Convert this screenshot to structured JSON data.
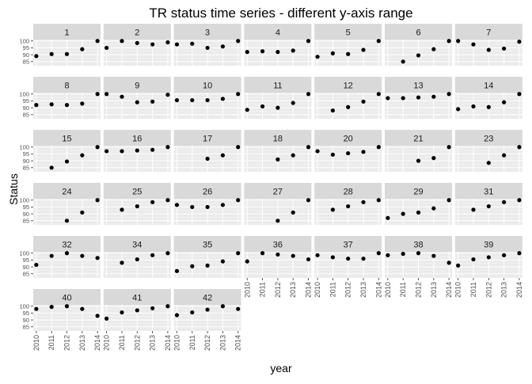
{
  "chart_data": {
    "type": "scatter",
    "title": "TR status time series - different y-axis range",
    "xlabel": "year",
    "ylabel": "Status",
    "x_ticks": [
      2010,
      2011,
      2012,
      2013,
      2014
    ],
    "y_ticks": [
      85,
      90,
      95,
      100
    ],
    "ylim": [
      82,
      101
    ],
    "grid": true,
    "point_color": "#000000",
    "panel_background": "#ebebeb",
    "strip_background": "#d9d9d9",
    "panels": [
      {
        "label": "1",
        "points": [
          [
            2010,
            89
          ],
          [
            2011,
            90.5
          ],
          [
            2012,
            90.5
          ],
          [
            2013,
            94
          ],
          [
            2014,
            100
          ]
        ]
      },
      {
        "label": "2",
        "points": [
          [
            2010,
            95
          ],
          [
            2011,
            100
          ],
          [
            2012,
            98.5
          ],
          [
            2013,
            97.5
          ],
          [
            2014,
            99
          ]
        ]
      },
      {
        "label": "3",
        "points": [
          [
            2010,
            97.5
          ],
          [
            2011,
            98
          ],
          [
            2012,
            95
          ],
          [
            2013,
            96
          ],
          [
            2014,
            100
          ]
        ]
      },
      {
        "label": "4",
        "points": [
          [
            2010,
            92
          ],
          [
            2011,
            92.5
          ],
          [
            2012,
            92
          ],
          [
            2013,
            93
          ],
          [
            2014,
            100
          ]
        ]
      },
      {
        "label": "5",
        "points": [
          [
            2010,
            88.5
          ],
          [
            2011,
            91
          ],
          [
            2012,
            90.5
          ],
          [
            2013,
            93.5
          ],
          [
            2014,
            100
          ]
        ]
      },
      {
        "label": "6",
        "points": [
          [
            2011,
            85
          ],
          [
            2012,
            89.5
          ],
          [
            2013,
            94
          ],
          [
            2014,
            100
          ]
        ]
      },
      {
        "label": "7",
        "points": [
          [
            2010,
            100
          ],
          [
            2011,
            97.5
          ],
          [
            2012,
            93.5
          ],
          [
            2013,
            94.5
          ],
          [
            2014,
            99.5
          ]
        ]
      },
      {
        "label": "8",
        "points": [
          [
            2010,
            92
          ],
          [
            2011,
            92.5
          ],
          [
            2012,
            92
          ],
          [
            2013,
            93
          ],
          [
            2014,
            100
          ]
        ]
      },
      {
        "label": "9",
        "points": [
          [
            2010,
            100
          ],
          [
            2011,
            98
          ],
          [
            2012,
            94
          ],
          [
            2013,
            94.5
          ],
          [
            2014,
            99.5
          ]
        ]
      },
      {
        "label": "10",
        "points": [
          [
            2010,
            95.5
          ],
          [
            2011,
            95.5
          ],
          [
            2012,
            95.5
          ],
          [
            2013,
            96.5
          ],
          [
            2014,
            100
          ]
        ]
      },
      {
        "label": "11",
        "points": [
          [
            2010,
            88.5
          ],
          [
            2011,
            91
          ],
          [
            2012,
            90
          ],
          [
            2013,
            93.5
          ],
          [
            2014,
            100
          ]
        ]
      },
      {
        "label": "12",
        "points": [
          [
            2011,
            88
          ],
          [
            2012,
            90.5
          ],
          [
            2013,
            94.5
          ],
          [
            2014,
            100
          ]
        ]
      },
      {
        "label": "13",
        "points": [
          [
            2010,
            97
          ],
          [
            2011,
            97
          ],
          [
            2012,
            97.5
          ],
          [
            2013,
            98
          ],
          [
            2014,
            100
          ]
        ]
      },
      {
        "label": "14",
        "points": [
          [
            2010,
            89
          ],
          [
            2011,
            91
          ],
          [
            2012,
            90.5
          ],
          [
            2013,
            94
          ],
          [
            2014,
            100
          ]
        ]
      },
      {
        "label": "15",
        "points": [
          [
            2011,
            85
          ],
          [
            2012,
            89.5
          ],
          [
            2013,
            94
          ],
          [
            2014,
            100
          ]
        ]
      },
      {
        "label": "16",
        "points": [
          [
            2010,
            97
          ],
          [
            2011,
            97
          ],
          [
            2012,
            97.5
          ],
          [
            2013,
            98
          ],
          [
            2014,
            100
          ]
        ]
      },
      {
        "label": "17",
        "points": [
          [
            2012,
            91.5
          ],
          [
            2013,
            94
          ],
          [
            2014,
            100
          ]
        ]
      },
      {
        "label": "18",
        "points": [
          [
            2012,
            91
          ],
          [
            2013,
            94
          ],
          [
            2014,
            100
          ]
        ]
      },
      {
        "label": "20",
        "points": [
          [
            2010,
            97
          ],
          [
            2011,
            94.5
          ],
          [
            2012,
            95.5
          ],
          [
            2013,
            96.5
          ],
          [
            2014,
            100
          ]
        ]
      },
      {
        "label": "21",
        "points": [
          [
            2012,
            90
          ],
          [
            2013,
            92
          ],
          [
            2014,
            100
          ]
        ]
      },
      {
        "label": "23",
        "points": [
          [
            2012,
            88.5
          ],
          [
            2013,
            94
          ],
          [
            2014,
            100
          ]
        ]
      },
      {
        "label": "24",
        "points": [
          [
            2012,
            85
          ],
          [
            2013,
            91
          ],
          [
            2014,
            100
          ]
        ]
      },
      {
        "label": "25",
        "points": [
          [
            2011,
            93
          ],
          [
            2012,
            95.5
          ],
          [
            2013,
            98.5
          ],
          [
            2014,
            100
          ]
        ]
      },
      {
        "label": "26",
        "points": [
          [
            2010,
            96.5
          ],
          [
            2011,
            95
          ],
          [
            2012,
            95
          ],
          [
            2013,
            96.5
          ],
          [
            2014,
            100
          ]
        ]
      },
      {
        "label": "27",
        "points": [
          [
            2012,
            85
          ],
          [
            2013,
            91
          ],
          [
            2014,
            100
          ]
        ]
      },
      {
        "label": "28",
        "points": [
          [
            2011,
            93
          ],
          [
            2012,
            95.5
          ],
          [
            2013,
            98.5
          ],
          [
            2014,
            100
          ]
        ]
      },
      {
        "label": "29",
        "points": [
          [
            2010,
            87
          ],
          [
            2011,
            90
          ],
          [
            2012,
            91
          ],
          [
            2013,
            94
          ],
          [
            2014,
            100
          ]
        ]
      },
      {
        "label": "31",
        "points": [
          [
            2011,
            93
          ],
          [
            2012,
            95.5
          ],
          [
            2013,
            98.5
          ],
          [
            2014,
            100
          ]
        ]
      },
      {
        "label": "32",
        "points": [
          [
            2010,
            91.5
          ],
          [
            2011,
            98
          ],
          [
            2012,
            100
          ],
          [
            2013,
            98
          ],
          [
            2014,
            96.5
          ]
        ]
      },
      {
        "label": "34",
        "points": [
          [
            2011,
            93
          ],
          [
            2012,
            95.5
          ],
          [
            2013,
            98.5
          ],
          [
            2014,
            100
          ]
        ]
      },
      {
        "label": "35",
        "points": [
          [
            2010,
            87
          ],
          [
            2011,
            90.5
          ],
          [
            2012,
            91
          ],
          [
            2013,
            94
          ],
          [
            2014,
            100
          ]
        ]
      },
      {
        "label": "36",
        "points": [
          [
            2010,
            94
          ],
          [
            2011,
            100
          ],
          [
            2012,
            99
          ],
          [
            2013,
            98
          ],
          [
            2014,
            95.5
          ]
        ]
      },
      {
        "label": "37",
        "points": [
          [
            2010,
            98.5
          ],
          [
            2011,
            97
          ],
          [
            2012,
            96
          ],
          [
            2013,
            96
          ],
          [
            2014,
            100
          ]
        ]
      },
      {
        "label": "38",
        "points": [
          [
            2010,
            98.5
          ],
          [
            2011,
            99.5
          ],
          [
            2012,
            100
          ],
          [
            2013,
            98
          ],
          [
            2014,
            93
          ]
        ]
      },
      {
        "label": "39",
        "points": [
          [
            2010,
            91
          ],
          [
            2011,
            95.5
          ],
          [
            2012,
            97
          ],
          [
            2013,
            98.5
          ],
          [
            2014,
            100
          ]
        ]
      },
      {
        "label": "40",
        "points": [
          [
            2010,
            98
          ],
          [
            2011,
            99.5
          ],
          [
            2012,
            100
          ],
          [
            2013,
            98
          ],
          [
            2014,
            93
          ]
        ]
      },
      {
        "label": "41",
        "points": [
          [
            2010,
            91
          ],
          [
            2011,
            95.5
          ],
          [
            2012,
            97
          ],
          [
            2013,
            98.5
          ],
          [
            2014,
            100
          ]
        ]
      },
      {
        "label": "42",
        "points": [
          [
            2010,
            93.5
          ],
          [
            2011,
            95.5
          ],
          [
            2012,
            97.5
          ],
          [
            2013,
            100
          ],
          [
            2014,
            98
          ]
        ]
      }
    ]
  }
}
